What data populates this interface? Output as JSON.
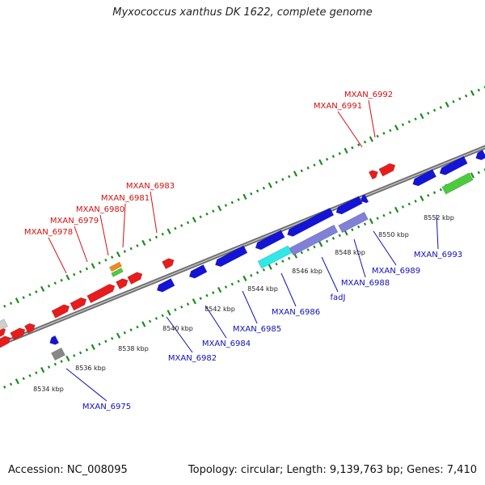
{
  "title": "Myxococcus xanthus DK 1622, complete genome",
  "footer": {
    "accession": "Accession: NC_008095",
    "summary": "Topology: circular; Length: 9,139,763 bp; Genes: 7,410"
  },
  "colors": {
    "forward_gene": "#e81c1c",
    "reverse_gene": "#1414d6",
    "cyan_gene": "#2fe8e8",
    "purple_gene": "#8080d8",
    "green_gene": "#4ccc3c",
    "orange_gene": "#f08a1a",
    "gray_gene": "#888888",
    "backbone": "#7f7f7f",
    "tick_green": "#1d8a1d",
    "forward_label": "#d01010",
    "reverse_label": "#1010b8"
  },
  "forward_labels": [
    "MXAN_6978",
    "MXAN_6979",
    "MXAN_6980",
    "MXAN_6981",
    "MXAN_6983",
    "MXAN_6991",
    "MXAN_6992"
  ],
  "reverse_labels": [
    "MXAN_6975",
    "MXAN_6982",
    "MXAN_6984",
    "MXAN_6985",
    "MXAN_6986",
    "fadJ",
    "MXAN_6988",
    "MXAN_6989",
    "MXAN_6993"
  ],
  "kbp_labels": [
    "8534 kbp",
    "8536 kbp",
    "8538 kbp",
    "8540 kbp",
    "8542 kbp",
    "8544 kbp",
    "8546 kbp",
    "8548 kbp",
    "8550 kbp",
    "8552 kbp"
  ]
}
